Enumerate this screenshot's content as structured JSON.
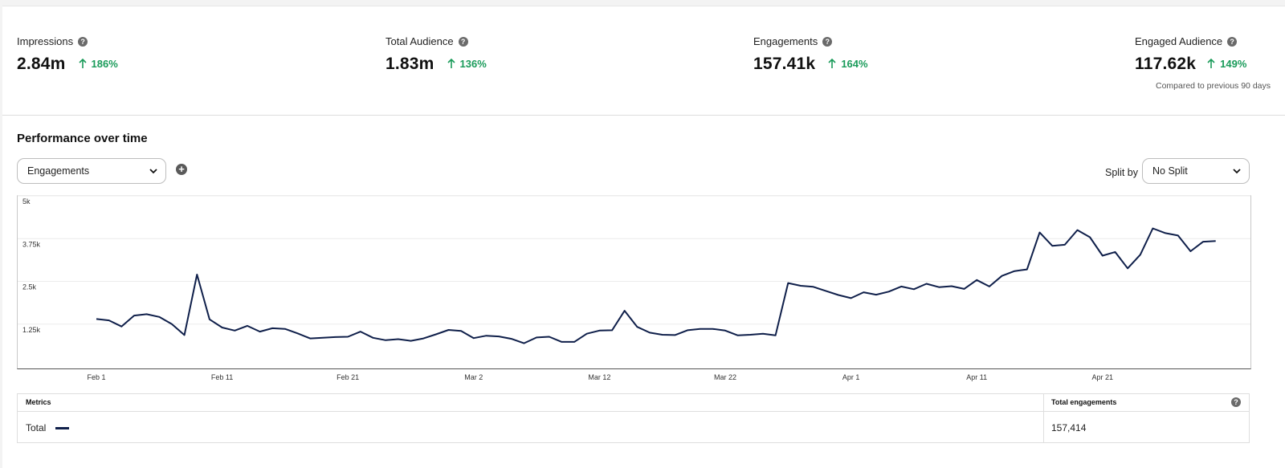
{
  "kpis": [
    {
      "title": "Impressions",
      "value": "2.84m",
      "change": "186%"
    },
    {
      "title": "Total Audience",
      "value": "1.83m",
      "change": "136%"
    },
    {
      "title": "Engagements",
      "value": "157.41k",
      "change": "164%"
    },
    {
      "title": "Engaged Audience",
      "value": "117.62k",
      "change": "149%"
    }
  ],
  "compare_note": "Compared to previous 90 days",
  "performance": {
    "title": "Performance over time",
    "metric_select": "Engagements",
    "split_label": "Split by",
    "split_select": "No Split"
  },
  "icons": {
    "help": "question-circle-icon",
    "trend": "arrow-up-icon",
    "add": "plus-circle-icon",
    "dropdown": "chevron-down-icon"
  },
  "colors": {
    "line": "#0f1f4a",
    "positive": "#1a9b5a"
  },
  "table": {
    "col_metrics": "Metrics",
    "col_total": "Total engagements",
    "row_label": "Total",
    "row_value": "157,414"
  },
  "chart_data": {
    "type": "line",
    "series": [
      {
        "values": [
          1400,
          1360,
          1180,
          1500,
          1540,
          1460,
          1250,
          930,
          2700,
          1390,
          1150,
          1060,
          1200,
          1030,
          1130,
          1110,
          980,
          830,
          850,
          870,
          880,
          1030,
          850,
          780,
          810,
          760,
          830,
          950,
          1080,
          1050,
          840,
          910,
          890,
          820,
          690,
          860,
          880,
          730,
          730,
          970,
          1060,
          1070,
          1640,
          1170,
          1000,
          940,
          930,
          1070,
          1110,
          1110,
          1060,
          920,
          940,
          970,
          920,
          2450,
          2370,
          2340,
          2220,
          2100,
          2010,
          2180,
          2110,
          2200,
          2350,
          2270,
          2430,
          2330,
          2360,
          2280,
          2540,
          2350,
          2660,
          2800,
          2850,
          3930,
          3540,
          3570,
          4000,
          3790,
          3250,
          3360,
          2880,
          3280,
          4050,
          3910,
          3840,
          3380,
          3660,
          3680
        ]
      }
    ],
    "x_start": "2023-02-01",
    "x_ticks": [
      "Feb 1",
      "Feb 11",
      "Feb 21",
      "Mar 2",
      "Mar 12",
      "Mar 22",
      "Apr 1",
      "Apr 11",
      "Apr 21"
    ],
    "y_ticks": [
      "1.25k",
      "2.5k",
      "3.75k",
      "5k"
    ],
    "ylim": [
      0,
      5000
    ],
    "grid": true
  }
}
